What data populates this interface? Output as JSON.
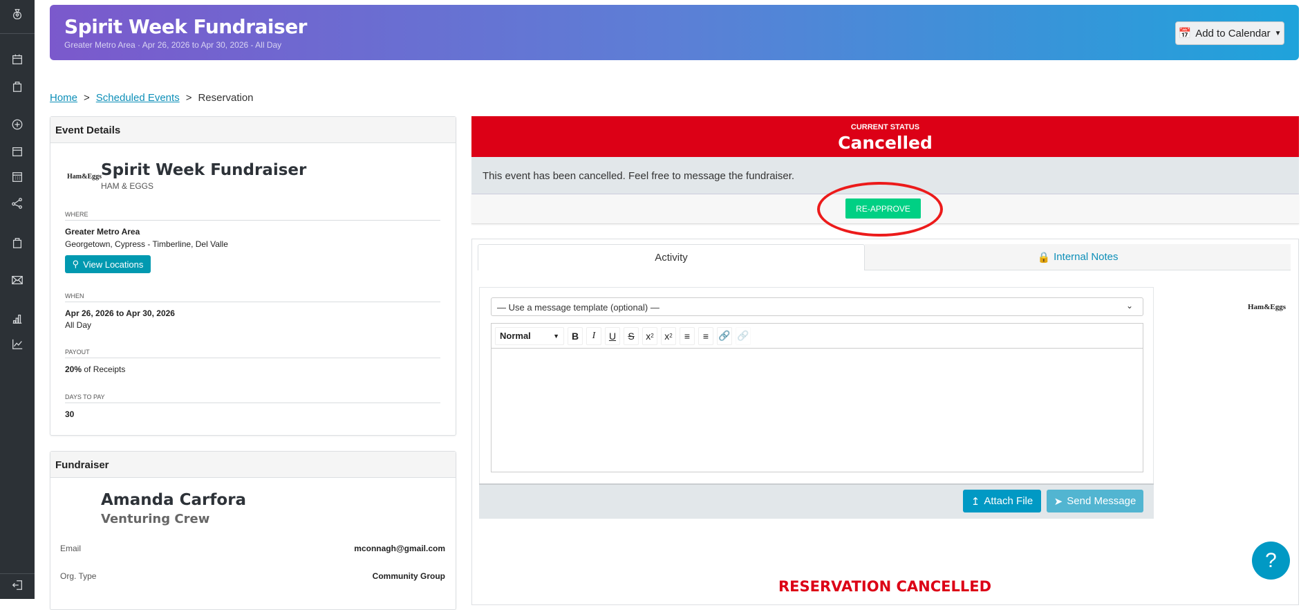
{
  "header": {
    "title": "Spirit Week Fundraiser",
    "subtitle": "Greater Metro Area · Apr 26, 2026 to Apr 30, 2026 - All Day",
    "add_to_calendar": "Add to Calendar"
  },
  "breadcrumb": [
    {
      "label": "Home"
    },
    {
      "label": "Scheduled Events"
    },
    {
      "label": "Reservation"
    }
  ],
  "event_details": {
    "heading": "Event Details",
    "logo_text": "Ham&Eggs",
    "title": "Spirit Week Fundraiser",
    "brand": "HAM & EGGS",
    "where_label": "WHERE",
    "where_main": "Greater Metro Area",
    "where_sub": "Georgetown, Cypress - Timberline, Del Valle",
    "view_locations": "View Locations",
    "when_label": "WHEN",
    "when_main": "Apr 26, 2026 to Apr 30, 2026",
    "when_sub": "All Day",
    "payout_label": "PAYOUT",
    "payout_pct": "20%",
    "payout_rest": " of Receipts",
    "days_label": "DAYS TO PAY",
    "days_value": "30"
  },
  "fundraiser": {
    "heading": "Fundraiser",
    "name": "Amanda Carfora",
    "org": "Venturing Crew",
    "email_label": "Email",
    "email": "mconnagh@gmail.com",
    "orgtype_label": "Org. Type",
    "orgtype": "Community Group"
  },
  "status": {
    "label": "CURRENT STATUS",
    "value": "Cancelled",
    "message": "This event has been cancelled. Feel free to message the fundraiser.",
    "reapprove": "RE-APPROVE",
    "color": "#dc0016"
  },
  "tabs": [
    {
      "label": "Activity",
      "active": true
    },
    {
      "label": "Internal Notes",
      "active": false
    }
  ],
  "composer": {
    "template_placeholder": "— Use a message template (optional) —",
    "format": "Normal",
    "attach": "Attach File",
    "send": "Send Message",
    "logo_text": "Ham&Eggs"
  },
  "reservation_status": "RESERVATION CANCELLED",
  "help": "?"
}
